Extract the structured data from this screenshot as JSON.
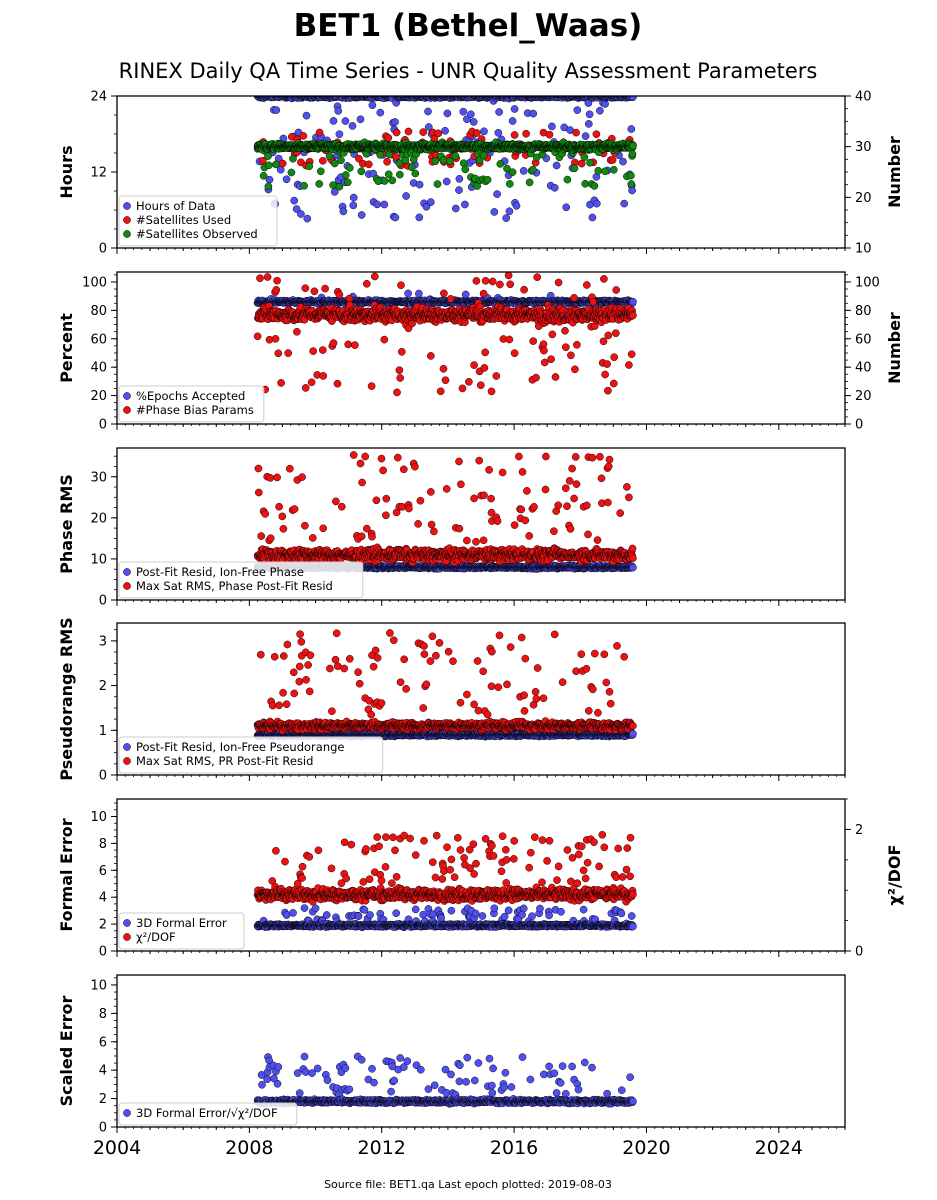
{
  "title": "BET1 (Bethel_Waas)",
  "subtitle": "RINEX Daily QA Time Series - UNR Quality Assessment Parameters",
  "footer": "Source file: BET1.qa Last epoch plotted: 2019-08-03",
  "colors": {
    "blue": "#5050f0",
    "red": "#ee1111",
    "green": "#118811"
  },
  "chart_data": [
    {
      "type": "scatter",
      "ylabel": "Hours",
      "ylim": [
        0,
        24
      ],
      "yticks": [
        0,
        12,
        24
      ],
      "y2label": "Number",
      "y2lim": [
        10,
        40
      ],
      "y2ticks": [
        10,
        20,
        30,
        40
      ],
      "xlim": [
        2004,
        2026
      ],
      "xticks": [
        2004,
        2008,
        2012,
        2016,
        2020,
        2024
      ],
      "legend_position": "lower-left",
      "series": [
        {
          "name": "Hours of Data",
          "color": "blue",
          "axis": "left",
          "base": 23.9,
          "spread": 0.3,
          "outlier_low": 4.5,
          "outlier_high": 24,
          "outlier_rate": 0.18
        },
        {
          "name": "#Satellites Used",
          "color": "red",
          "axis": "right",
          "base": 30,
          "spread": 0.6,
          "outlier_low": 26,
          "outlier_high": 33,
          "outlier_rate": 0.08
        },
        {
          "name": "#Satellites Observed",
          "color": "green",
          "axis": "right",
          "base": 30,
          "spread": 0.8,
          "outlier_low": 22,
          "outlier_high": 31,
          "outlier_rate": 0.12
        }
      ]
    },
    {
      "type": "scatter",
      "ylabel": "Percent",
      "ylim": [
        0,
        107
      ],
      "yticks": [
        0,
        20,
        40,
        60,
        80,
        100
      ],
      "y2label": "Number",
      "y2lim": [
        0,
        107
      ],
      "y2ticks": [
        0,
        20,
        40,
        60,
        80,
        100
      ],
      "xlim": [
        2004,
        2026
      ],
      "xticks": [
        2004,
        2008,
        2012,
        2016,
        2020,
        2024
      ],
      "legend_position": "lower-left",
      "series": [
        {
          "name": "%Epochs Accepted",
          "color": "blue",
          "axis": "left",
          "base": 86,
          "spread": 1.5,
          "outlier_low": 84,
          "outlier_high": 92,
          "outlier_rate": 0.02
        },
        {
          "name": "#Phase Bias Params",
          "color": "red",
          "axis": "right",
          "base": 77,
          "spread": 7,
          "outlier_low": 22,
          "outlier_high": 106,
          "outlier_rate": 0.14
        }
      ]
    },
    {
      "type": "scatter",
      "ylabel": "Phase RMS",
      "ylim": [
        0,
        37
      ],
      "yticks": [
        0,
        10,
        20,
        30
      ],
      "xlim": [
        2004,
        2026
      ],
      "xticks": [
        2004,
        2008,
        2012,
        2016,
        2020,
        2024
      ],
      "legend_position": "lower-left",
      "series": [
        {
          "name": "Post-Fit Resid, Ion-Free Phase",
          "color": "blue",
          "axis": "left",
          "base": 8,
          "spread": 0.5,
          "outlier_low": 7,
          "outlier_high": 9,
          "outlier_rate": 0.0
        },
        {
          "name": "Max Sat RMS, Phase Post-Fit Resid",
          "color": "red",
          "axis": "left",
          "base": 11,
          "spread": 2.0,
          "outlier_low": 14,
          "outlier_high": 35.5,
          "outlier_rate": 0.12
        }
      ]
    },
    {
      "type": "scatter",
      "ylabel": "Pseudorange RMS",
      "ylim": [
        0,
        3.4
      ],
      "yticks": [
        0,
        1,
        2,
        3
      ],
      "xlim": [
        2004,
        2026
      ],
      "xticks": [
        2004,
        2008,
        2012,
        2016,
        2020,
        2024
      ],
      "legend_position": "lower-left",
      "series": [
        {
          "name": "Post-Fit Resid, Ion-Free Pseudorange",
          "color": "blue",
          "axis": "left",
          "base": 0.9,
          "spread": 0.05,
          "outlier_low": 0.8,
          "outlier_high": 1.0,
          "outlier_rate": 0.0
        },
        {
          "name": "Max Sat RMS, PR Post-Fit Resid",
          "color": "red",
          "axis": "left",
          "base": 1.1,
          "spread": 0.12,
          "outlier_low": 1.3,
          "outlier_high": 3.2,
          "outlier_rate": 0.1
        }
      ]
    },
    {
      "type": "scatter",
      "ylabel": "Formal Error",
      "ylim": [
        0,
        11.3
      ],
      "yticks": [
        0,
        2,
        4,
        6,
        8,
        10
      ],
      "y2label": "χ²/DOF",
      "y2lim": [
        0,
        2.5
      ],
      "y2ticks": [
        0,
        2
      ],
      "xlim": [
        2004,
        2026
      ],
      "xticks": [
        2004,
        2008,
        2012,
        2016,
        2020,
        2024
      ],
      "legend_position": "lower-left",
      "series": [
        {
          "name": "3D Formal Error",
          "color": "blue",
          "axis": "left",
          "base": 1.9,
          "spread": 0.15,
          "outlier_low": 2.2,
          "outlier_high": 3.2,
          "outlier_rate": 0.08
        },
        {
          "name": "χ²/DOF",
          "color": "red",
          "axis": "left",
          "base": 4.2,
          "spread": 0.6,
          "outlier_low": 5,
          "outlier_high": 8.7,
          "outlier_rate": 0.12
        }
      ]
    },
    {
      "type": "scatter",
      "ylabel": "Scaled Error",
      "ylim": [
        0,
        10.7
      ],
      "yticks": [
        0,
        2,
        4,
        6,
        8,
        10
      ],
      "xlim": [
        2004,
        2026
      ],
      "xticks": [
        2004,
        2008,
        2012,
        2016,
        2020,
        2024
      ],
      "legend_position": "lower-left",
      "series": [
        {
          "name": "3D Formal Error/√χ²/DOF",
          "color": "blue",
          "axis": "left",
          "base": 1.8,
          "spread": 0.2,
          "outlier_low": 2.2,
          "outlier_high": 5,
          "outlier_rate": 0.1
        }
      ]
    }
  ],
  "data_start": 2008.25,
  "data_end": 2019.59
}
